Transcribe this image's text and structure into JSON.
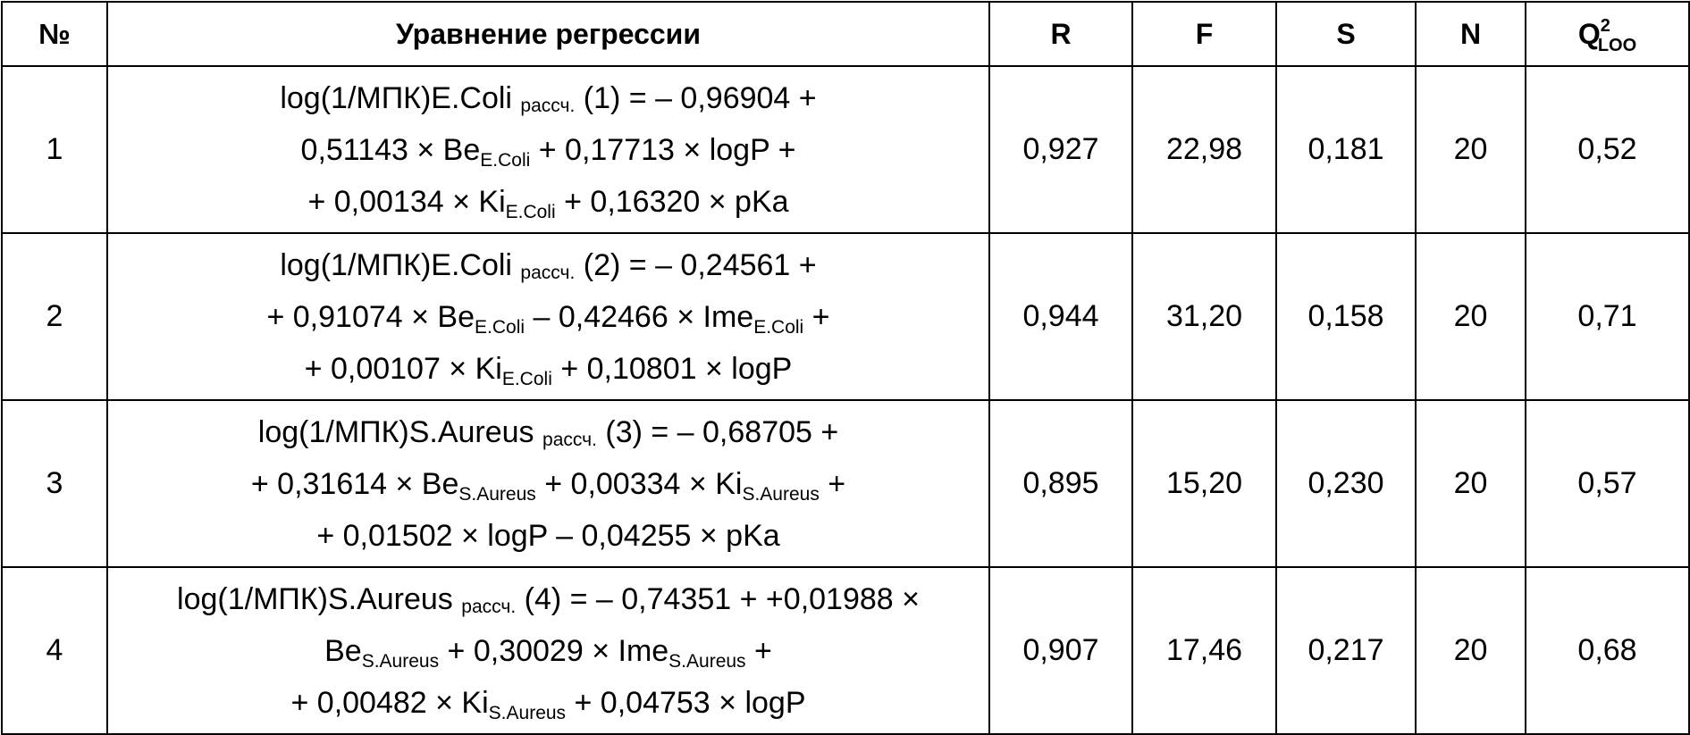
{
  "headers": {
    "num": "№",
    "equation": "Уравнение регрессии",
    "r": "R",
    "f": "F",
    "s": "S",
    "n": "N",
    "q_main": "Q",
    "q_sup": "2",
    "q_sub": "LOO"
  },
  "rows": [
    {
      "num": "1",
      "lines": [
        [
          {
            "t": "log(1/МПК)E.Coli "
          },
          {
            "t": "рассч.",
            "sub": true
          },
          {
            "t": " (1) = – 0,96904 +"
          }
        ],
        [
          {
            "t": "0,51143 × Be"
          },
          {
            "t": "E.Coli",
            "sub": true
          },
          {
            "t": " + 0,17713 × logP +"
          }
        ],
        [
          {
            "t": "+ 0,00134 × Ki"
          },
          {
            "t": "E.Coli",
            "sub": true
          },
          {
            "t": " + 0,16320 × pKa"
          }
        ]
      ],
      "r": "0,927",
      "f": "22,98",
      "s": "0,181",
      "n": "20",
      "q": "0,52"
    },
    {
      "num": "2",
      "lines": [
        [
          {
            "t": "log(1/МПК)E.Coli "
          },
          {
            "t": "рассч.",
            "sub": true
          },
          {
            "t": " (2) = – 0,24561 +"
          }
        ],
        [
          {
            "t": "+ 0,91074 × Be"
          },
          {
            "t": "E.Coli",
            "sub": true
          },
          {
            "t": " – 0,42466 × Ime"
          },
          {
            "t": "E.Coli",
            "sub": true
          },
          {
            "t": " +"
          }
        ],
        [
          {
            "t": "+ 0,00107 × Ki"
          },
          {
            "t": "E.Coli",
            "sub": true
          },
          {
            "t": " + 0,10801 × logP"
          }
        ]
      ],
      "r": "0,944",
      "f": "31,20",
      "s": "0,158",
      "n": "20",
      "q": "0,71"
    },
    {
      "num": "3",
      "lines": [
        [
          {
            "t": "log(1/МПК)S.Aureus "
          },
          {
            "t": "рассч.",
            "sub": true
          },
          {
            "t": " (3) = – 0,68705 +"
          }
        ],
        [
          {
            "t": "+ 0,31614 × Be"
          },
          {
            "t": "S.Aureus",
            "sub": true
          },
          {
            "t": " + 0,00334 × Ki"
          },
          {
            "t": "S.Aureus",
            "sub": true
          },
          {
            "t": " +"
          }
        ],
        [
          {
            "t": "+ 0,01502 × logP – 0,04255 × pKa"
          }
        ]
      ],
      "r": "0,895",
      "f": "15,20",
      "s": "0,230",
      "n": "20",
      "q": "0,57"
    },
    {
      "num": "4",
      "lines": [
        [
          {
            "t": "log(1/МПК)S.Aureus "
          },
          {
            "t": "рассч.",
            "sub": true
          },
          {
            "t": " (4) = – 0,74351 + +0,01988 ×"
          }
        ],
        [
          {
            "t": "Be"
          },
          {
            "t": "S.Aureus",
            "sub": true
          },
          {
            "t": " + 0,30029 × Ime"
          },
          {
            "t": "S.Aureus",
            "sub": true
          },
          {
            "t": " +"
          }
        ],
        [
          {
            "t": "+ 0,00482 × Ki"
          },
          {
            "t": "S.Aureus",
            "sub": true
          },
          {
            "t": " + 0,04753 × logP"
          }
        ]
      ],
      "r": "0,907",
      "f": "17,46",
      "s": "0,217",
      "n": "20",
      "q": "0,68"
    }
  ]
}
